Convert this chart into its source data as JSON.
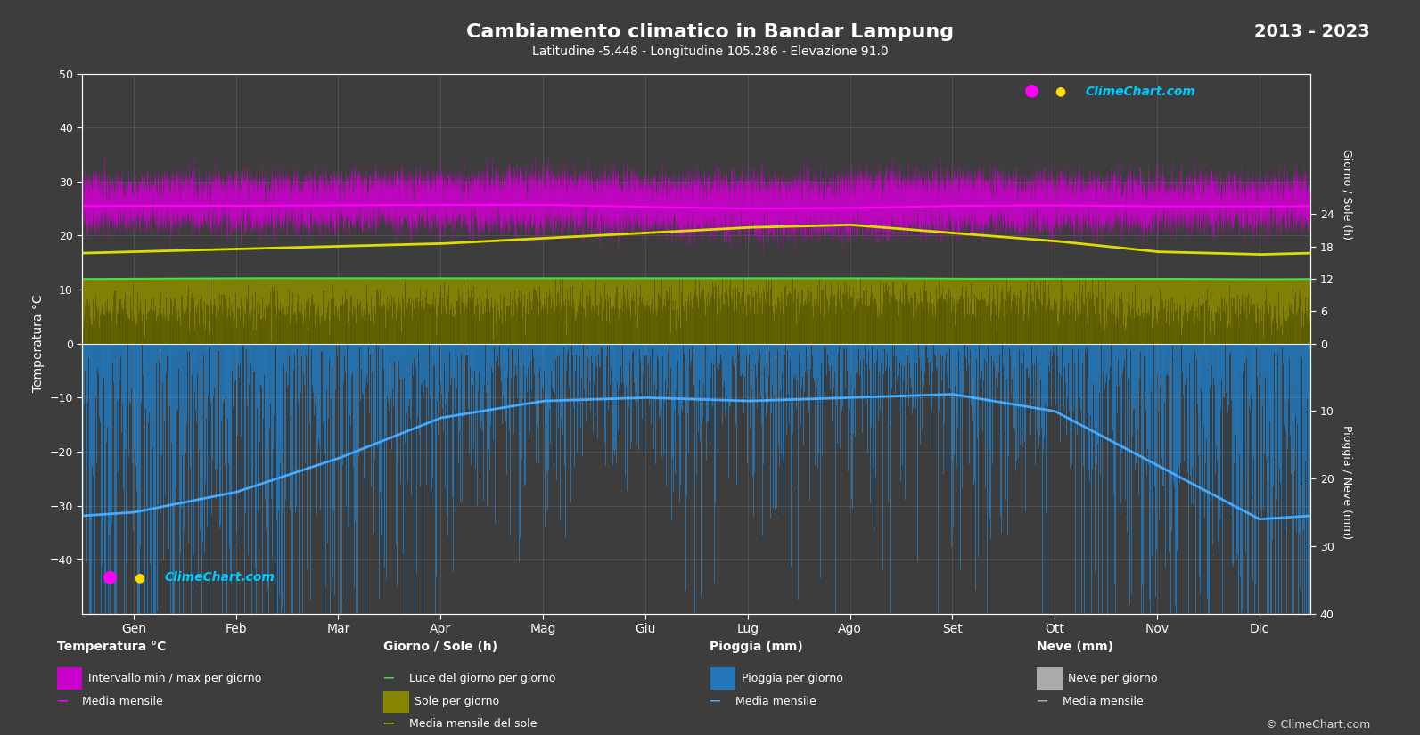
{
  "title": "Cambiamento climatico in Bandar Lampung",
  "subtitle": "Latitudine -5.448 - Longitudine 105.286 - Elevazione 91.0",
  "year_range": "2013 - 2023",
  "bg_color": "#3d3d3d",
  "months_it": [
    "Gen",
    "Feb",
    "Mar",
    "Apr",
    "Mag",
    "Giu",
    "Lug",
    "Ago",
    "Set",
    "Ott",
    "Nov",
    "Dic"
  ],
  "temp_ylim": [
    -50,
    50
  ],
  "temp_min_monthly": [
    22.5,
    22.3,
    22.4,
    22.2,
    22.0,
    21.5,
    21.0,
    21.0,
    21.5,
    22.0,
    22.3,
    22.5
  ],
  "temp_max_monthly": [
    30.0,
    30.2,
    30.3,
    30.5,
    30.8,
    30.2,
    30.0,
    30.3,
    30.6,
    30.2,
    29.8,
    29.6
  ],
  "temp_mean_monthly": [
    25.5,
    25.5,
    25.6,
    25.7,
    25.7,
    25.3,
    25.0,
    25.1,
    25.5,
    25.6,
    25.4,
    25.4
  ],
  "rain_mean_monthly": [
    25.0,
    22.0,
    17.0,
    11.0,
    8.5,
    8.0,
    8.5,
    8.0,
    7.5,
    10.0,
    18.0,
    26.0
  ],
  "sun_hours_monthly": [
    6.0,
    6.5,
    6.5,
    7.0,
    7.5,
    7.8,
    8.2,
    8.5,
    7.8,
    7.2,
    6.0,
    5.5
  ],
  "daylight_monthly": [
    12.0,
    12.1,
    12.1,
    12.1,
    12.1,
    12.1,
    12.1,
    12.1,
    12.0,
    12.0,
    12.0,
    11.9
  ],
  "sun_mean_monthly": [
    17.0,
    17.5,
    18.0,
    18.5,
    19.5,
    20.5,
    21.5,
    22.0,
    20.5,
    19.0,
    17.0,
    16.5
  ],
  "color_temp_fill": "#cc00cc",
  "color_temp_line": "#ff00ff",
  "color_rain_bar": "#2277bb",
  "color_rain_line": "#44aaff",
  "color_sun_fill": "#888800",
  "color_sun_daily_bar": "#666600",
  "color_sun_line": "#dddd00",
  "color_daylight_line": "#44dd44",
  "color_snow_bar": "#aaaaaa",
  "grid_color": "#888888",
  "text_color": "#ffffff"
}
